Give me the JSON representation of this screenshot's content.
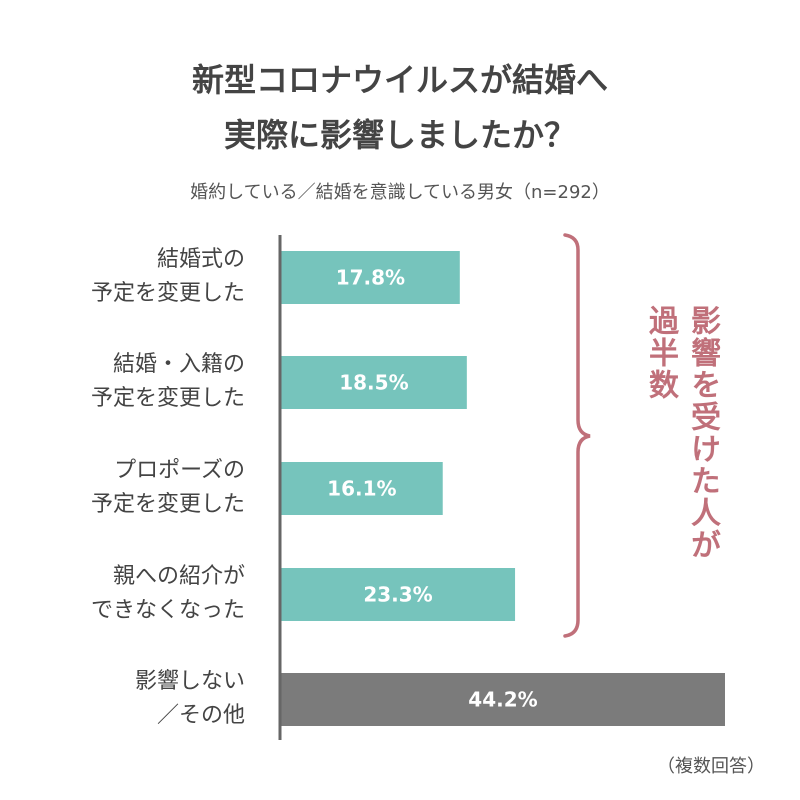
{
  "title_lines": [
    "新型コロナウイルスが結婚へ",
    "実際に影響しましたか？"
  ],
  "subtitle": "婚約している／結婚を意識している男女（n=292）",
  "note": "（複数回答）",
  "annotation": {
    "line1": "影響を受けた人が",
    "line2": "過半数"
  },
  "colors": {
    "affected": "#76c4bc",
    "not_affected": "#7b7b7b",
    "accent": "#c0707a"
  },
  "chart_data": {
    "type": "bar",
    "orientation": "horizontal",
    "categories": [
      [
        "結婚式の",
        "予定を変更した"
      ],
      [
        "結婚・入籍の",
        "予定を変更した"
      ],
      [
        "プロポーズの",
        "予定を変更した"
      ],
      [
        "親への紹介が",
        "できなくなった"
      ],
      [
        "影響しない",
        "／その他"
      ]
    ],
    "values": [
      17.8,
      18.5,
      16.1,
      23.3,
      44.2
    ],
    "value_labels": [
      "17.8%",
      "18.5%",
      "16.1%",
      "23.3%",
      "44.2%"
    ],
    "xlim": [
      0,
      44.2
    ],
    "unit": "%"
  }
}
